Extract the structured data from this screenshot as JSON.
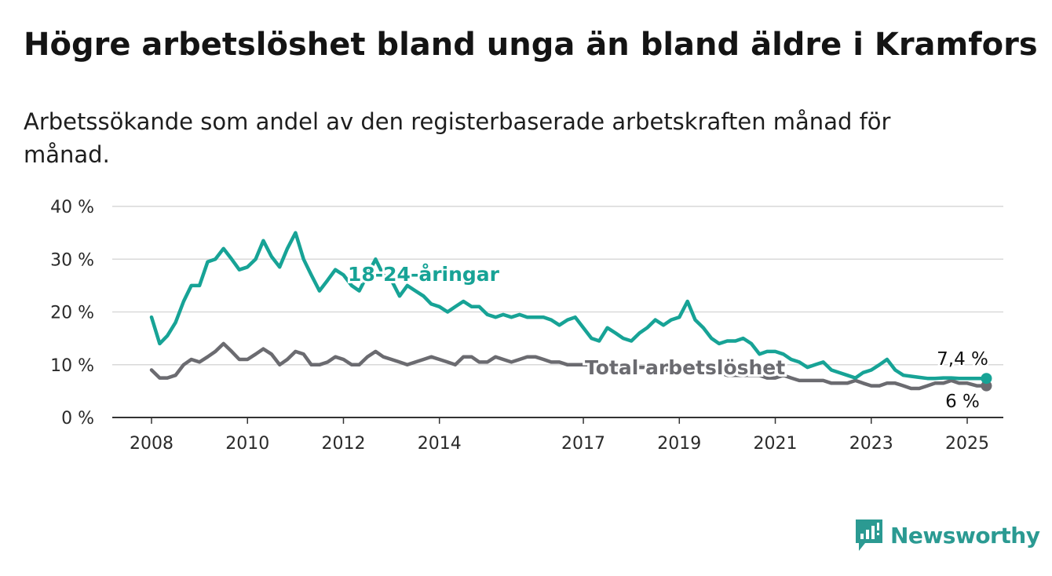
{
  "title": "Högre arbetslöshet bland unga än bland äldre i Kramfors",
  "subtitle": "Arbetssökande som andel av den registerbaserade arbetskraften månad för månad.",
  "brand": {
    "name": "Newsworthy",
    "icon": "bar-chart-bubble-icon",
    "color": "#2b9a92"
  },
  "chart_data": {
    "type": "line",
    "ylim": [
      0,
      40
    ],
    "yticks": [
      0,
      10,
      20,
      30,
      40
    ],
    "ytick_labels": [
      "0 %",
      "10 %",
      "20 %",
      "30 %",
      "40 %"
    ],
    "xlim": [
      2008,
      2025
    ],
    "xticks": [
      2008,
      2010,
      2012,
      2014,
      2017,
      2019,
      2021,
      2023,
      2025
    ],
    "xtick_labels": [
      "2008",
      "2010",
      "2012",
      "2014",
      "2017",
      "2019",
      "2021",
      "2023",
      "2025"
    ],
    "grid": "horizontal",
    "series": [
      {
        "name": "18-24-åringar",
        "color": "#17a396",
        "end_label": "7,4 %",
        "x": [
          2008,
          2008.17,
          2008.33,
          2008.5,
          2008.67,
          2008.83,
          2009,
          2009.17,
          2009.33,
          2009.5,
          2009.67,
          2009.83,
          2010,
          2010.17,
          2010.33,
          2010.5,
          2010.67,
          2010.83,
          2011,
          2011.17,
          2011.33,
          2011.5,
          2011.67,
          2011.83,
          2012,
          2012.17,
          2012.33,
          2012.5,
          2012.67,
          2012.83,
          2013,
          2013.17,
          2013.33,
          2013.5,
          2013.67,
          2013.83,
          2014,
          2014.17,
          2014.33,
          2014.5,
          2014.67,
          2014.83,
          2015,
          2015.17,
          2015.33,
          2015.5,
          2015.67,
          2015.83,
          2016,
          2016.17,
          2016.33,
          2016.5,
          2016.67,
          2016.83,
          2017,
          2017.17,
          2017.33,
          2017.5,
          2017.67,
          2017.83,
          2018,
          2018.17,
          2018.33,
          2018.5,
          2018.67,
          2018.83,
          2019,
          2019.17,
          2019.33,
          2019.5,
          2019.67,
          2019.83,
          2020,
          2020.17,
          2020.33,
          2020.5,
          2020.67,
          2020.83,
          2021,
          2021.17,
          2021.33,
          2021.5,
          2021.67,
          2021.83,
          2022,
          2022.17,
          2022.33,
          2022.5,
          2022.67,
          2022.83,
          2023,
          2023.17,
          2023.33,
          2023.5,
          2023.67,
          2023.83,
          2024,
          2024.17,
          2024.33,
          2024.5,
          2024.67,
          2024.83,
          2025,
          2025.2,
          2025.4
        ],
        "y": [
          19,
          14,
          15.5,
          18,
          22,
          25,
          25,
          29.5,
          30,
          32,
          30,
          28,
          28.5,
          30,
          33.5,
          30.5,
          28.5,
          32,
          35,
          30,
          27,
          24,
          26,
          28,
          27,
          25,
          24,
          27,
          30,
          27,
          26,
          23,
          25,
          24,
          23,
          21.5,
          21,
          20,
          21,
          22,
          21,
          21,
          19.5,
          19,
          19.5,
          19,
          19.5,
          19,
          19,
          19,
          18.5,
          17.5,
          18.5,
          19,
          17,
          15,
          14.5,
          17,
          16,
          15,
          14.5,
          16,
          17,
          18.5,
          17.5,
          18.5,
          19,
          22,
          18.5,
          17,
          15,
          14,
          14.5,
          14.5,
          15,
          14,
          12,
          12.5,
          12.5,
          12,
          11,
          10.5,
          9.5,
          10,
          10.5,
          9,
          8.5,
          8,
          7.5,
          8.5,
          9,
          10,
          11,
          9,
          8,
          7.8,
          7.6,
          7.4,
          7.4,
          7.5,
          7.5,
          7.4,
          7.4,
          7.4,
          7.4
        ]
      },
      {
        "name": "Total arbetslöshet",
        "color": "#6b6b70",
        "end_label": "6 %",
        "x": [
          2008,
          2008.17,
          2008.33,
          2008.5,
          2008.67,
          2008.83,
          2009,
          2009.17,
          2009.33,
          2009.5,
          2009.67,
          2009.83,
          2010,
          2010.17,
          2010.33,
          2010.5,
          2010.67,
          2010.83,
          2011,
          2011.17,
          2011.33,
          2011.5,
          2011.67,
          2011.83,
          2012,
          2012.17,
          2012.33,
          2012.5,
          2012.67,
          2012.83,
          2013,
          2013.17,
          2013.33,
          2013.5,
          2013.67,
          2013.83,
          2014,
          2014.17,
          2014.33,
          2014.5,
          2014.67,
          2014.83,
          2015,
          2015.17,
          2015.33,
          2015.5,
          2015.67,
          2015.83,
          2016,
          2016.17,
          2016.33,
          2016.5,
          2016.67,
          2016.83,
          2017,
          2017.17,
          2017.33,
          2017.5,
          2017.67,
          2017.83,
          2018,
          2018.17,
          2018.33,
          2018.5,
          2018.67,
          2018.83,
          2019,
          2019.17,
          2019.33,
          2019.5,
          2019.67,
          2019.83,
          2020,
          2020.17,
          2020.33,
          2020.5,
          2020.67,
          2020.83,
          2021,
          2021.17,
          2021.33,
          2021.5,
          2021.67,
          2021.83,
          2022,
          2022.17,
          2022.33,
          2022.5,
          2022.67,
          2022.83,
          2023,
          2023.17,
          2023.33,
          2023.5,
          2023.67,
          2023.83,
          2024,
          2024.17,
          2024.33,
          2024.5,
          2024.67,
          2024.83,
          2025,
          2025.2,
          2025.4
        ],
        "y": [
          9,
          7.5,
          7.5,
          8,
          10,
          11,
          10.5,
          11.5,
          12.5,
          14,
          12.5,
          11,
          11,
          12,
          13,
          12,
          10,
          11,
          12.5,
          12,
          10,
          10,
          10.5,
          11.5,
          11,
          10,
          10,
          11.5,
          12.5,
          11.5,
          11,
          10.5,
          10,
          10.5,
          11,
          11.5,
          11,
          10.5,
          10,
          11.5,
          11.5,
          10.5,
          10.5,
          11.5,
          11,
          10.5,
          11,
          11.5,
          11.5,
          11,
          10.5,
          10.5,
          10,
          10,
          10,
          10,
          9.5,
          9.5,
          9.5,
          9.5,
          9.5,
          9.5,
          9.5,
          9,
          9,
          9,
          9,
          8.5,
          8.5,
          8.5,
          8.5,
          8.5,
          8,
          8,
          8,
          8,
          8,
          7.5,
          7.5,
          8,
          7.5,
          7,
          7,
          7,
          7,
          6.5,
          6.5,
          6.5,
          7,
          6.5,
          6,
          6,
          6.5,
          6.5,
          6,
          5.5,
          5.5,
          6,
          6.5,
          6.5,
          7,
          6.5,
          6.5,
          6,
          6
        ]
      }
    ]
  }
}
